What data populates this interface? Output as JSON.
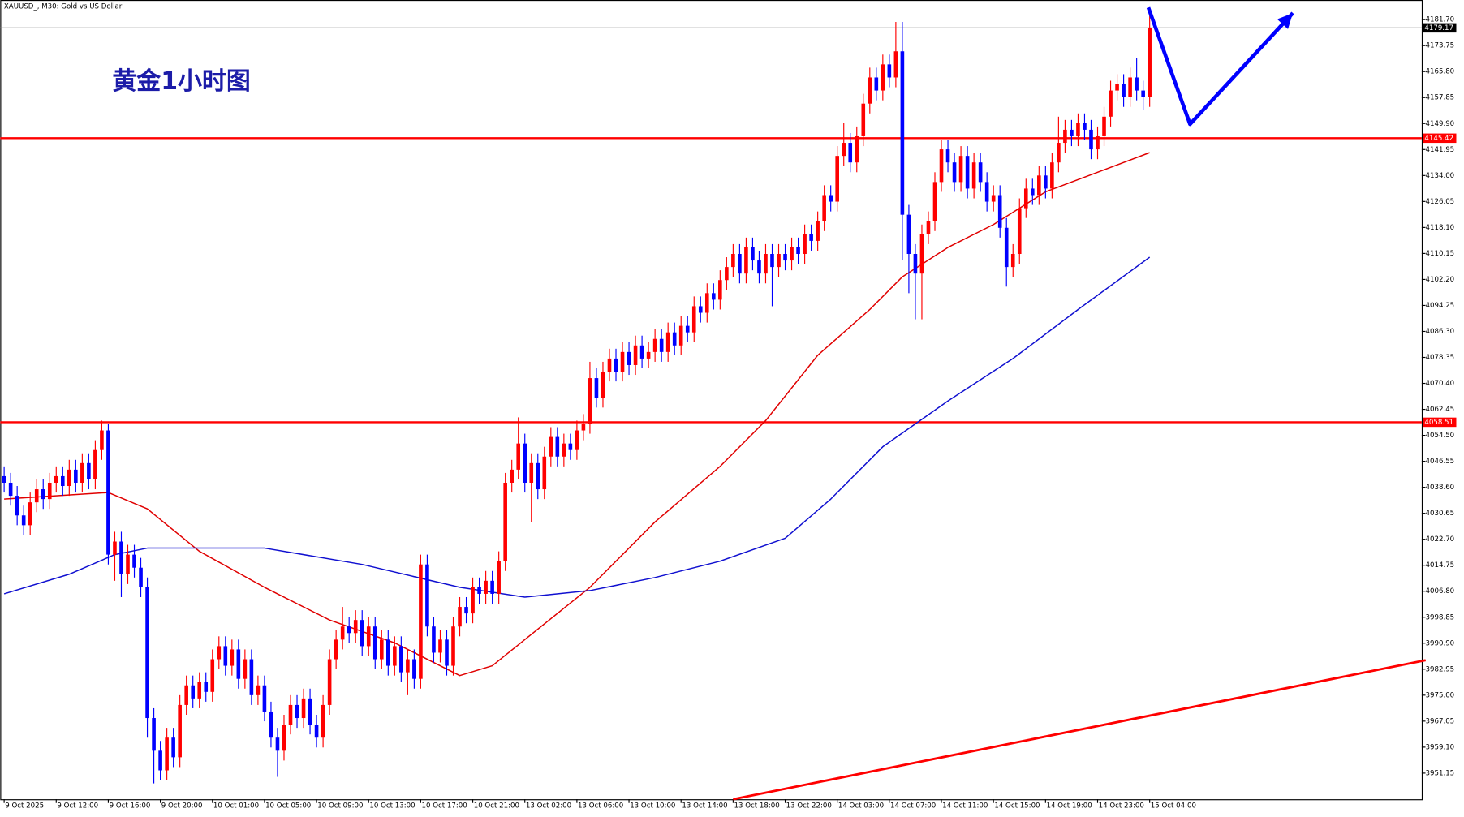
{
  "chart_data": {
    "type": "candlestick",
    "header": "XAUUSD_, M30:  Gold vs US Dollar",
    "title": "黄金1小时图",
    "up_color": "#ff0000",
    "down_color": "#0000ff",
    "xlim": [
      -0.6,
      217.8
    ],
    "ylim": [
      3943.15,
      4187.7
    ],
    "xticks": [
      {
        "value": 0,
        "label": "9 Oct 2025"
      },
      {
        "value": 8,
        "label": "9 Oct 12:00"
      },
      {
        "value": 16,
        "label": "9 Oct 16:00"
      },
      {
        "value": 24,
        "label": "9 Oct 20:00"
      },
      {
        "value": 32,
        "label": "10 Oct 01:00"
      },
      {
        "value": 40,
        "label": "10 Oct 05:00"
      },
      {
        "value": 48,
        "label": "10 Oct 09:00"
      },
      {
        "value": 56,
        "label": "10 Oct 13:00"
      },
      {
        "value": 64,
        "label": "10 Oct 17:00"
      },
      {
        "value": 72,
        "label": "10 Oct 21:00"
      },
      {
        "value": 80,
        "label": "13 Oct 02:00"
      },
      {
        "value": 88,
        "label": "13 Oct 06:00"
      },
      {
        "value": 96,
        "label": "13 Oct 10:00"
      },
      {
        "value": 104,
        "label": "13 Oct 14:00"
      },
      {
        "value": 112,
        "label": "13 Oct 18:00"
      },
      {
        "value": 120,
        "label": "13 Oct 22:00"
      },
      {
        "value": 128,
        "label": "14 Oct 03:00"
      },
      {
        "value": 136,
        "label": "14 Oct 07:00"
      },
      {
        "value": 144,
        "label": "14 Oct 11:00"
      },
      {
        "value": 152,
        "label": "14 Oct 15:00"
      },
      {
        "value": 160,
        "label": "14 Oct 19:00"
      },
      {
        "value": 168,
        "label": "14 Oct 23:00"
      },
      {
        "value": 176,
        "label": "15 Oct 04:00"
      }
    ],
    "yticks": [
      {
        "value": 4181.7,
        "label": "4181.70"
      },
      4173.75,
      {
        "value": 4165.8,
        "label": "4165.80"
      },
      4157.85,
      {
        "value": 4149.9,
        "label": "4149.90"
      },
      4141.95,
      {
        "value": 4134,
        "label": "4134.00"
      },
      4126.05,
      {
        "value": 4118.1,
        "label": "4118.10"
      },
      4110.15,
      {
        "value": 4102.2,
        "label": "4102.20"
      },
      4094.25,
      {
        "value": 4086.3,
        "label": "4086.30"
      },
      4078.35,
      {
        "value": 4070.4,
        "label": "4070.40"
      },
      4062.45,
      {
        "value": 4054.5,
        "label": "4054.50"
      },
      4046.55,
      {
        "value": 4038.6,
        "label": "4038.60"
      },
      4030.65,
      {
        "value": 4022.7,
        "label": "4022.70"
      },
      4014.75,
      {
        "value": 4006.8,
        "label": "4006.80"
      },
      3998.85,
      {
        "value": 3990.9,
        "label": "3990.90"
      },
      3982.95,
      {
        "value": 3975,
        "label": "3975.00"
      },
      3967.05,
      {
        "value": 3959.1,
        "label": "3959.10"
      },
      3951.15
    ],
    "last_price": 4179.17,
    "hlines": [
      {
        "value": 4145.42,
        "color": "#ff0000"
      },
      {
        "value": 4058.51,
        "color": "#ff0000"
      }
    ],
    "candles": {
      "open": [
        4042,
        4040,
        4036,
        4030,
        4027,
        4034,
        4038,
        4035,
        4040,
        4042,
        4039,
        4044,
        4040,
        4046,
        4041,
        4050,
        4056,
        4018,
        4022,
        4012,
        4018,
        4014,
        4008,
        3968,
        3958,
        3952,
        3962,
        3956,
        3972,
        3978,
        3974,
        3979,
        3976,
        3986,
        3990,
        3984,
        3989,
        3980,
        3986,
        3975,
        3978,
        3970,
        3962,
        3958,
        3966,
        3972,
        3968,
        3974,
        3966,
        3962,
        3972,
        3986,
        3992,
        3996,
        3994,
        3998,
        3990,
        3996,
        3986,
        3992,
        3984,
        3990,
        3982,
        3986,
        3980,
        4015,
        3996,
        3988,
        3992,
        3984,
        3996,
        4002,
        4000,
        4008,
        4006,
        4010,
        4006,
        4016,
        4040,
        4044,
        4052,
        4040,
        4046,
        4038,
        4048,
        4054,
        4048,
        4052,
        4050,
        4056,
        4058,
        4072,
        4066,
        4074,
        4078,
        4074,
        4080,
        4076,
        4082,
        4078,
        4080,
        4084,
        4080,
        4086,
        4082,
        4088,
        4086,
        4094,
        4092,
        4098,
        4096,
        4102,
        4106,
        4110,
        4104,
        4112,
        4108,
        4104,
        4110,
        4106,
        4110,
        4108,
        4112,
        4110,
        4116,
        4114,
        4120,
        4128,
        4126,
        4140,
        4144,
        4138,
        4146,
        4156,
        4164,
        4160,
        4168,
        4164,
        4172,
        4122,
        4110,
        4104,
        4116,
        4120,
        4132,
        4142,
        4138,
        4132,
        4140,
        4130,
        4138,
        4132,
        4126,
        4128,
        4118,
        4106,
        4110,
        4124,
        4130,
        4128,
        4134,
        4130,
        4138,
        4144,
        4148,
        4146,
        4150,
        4148,
        4142,
        4146,
        4152,
        4160,
        4162,
        4158,
        4164,
        4160,
        4158
      ],
      "high": [
        4045,
        4043,
        4039,
        4033,
        4037,
        4041,
        4041,
        4043,
        4045,
        4045,
        4047,
        4047,
        4049,
        4049,
        4053,
        4059,
        4058,
        4025,
        4025,
        4021,
        4021,
        4017,
        4011,
        3971,
        3961,
        3965,
        3965,
        3975,
        3981,
        3981,
        3982,
        3982,
        3989,
        3993,
        3993,
        3992,
        3992,
        3989,
        3989,
        3981,
        3981,
        3973,
        3965,
        3969,
        3975,
        3975,
        3977,
        3977,
        3969,
        3975,
        3989,
        3995,
        4002,
        3999,
        4001,
        4001,
        3999,
        3999,
        3995,
        3995,
        3993,
        3993,
        3989,
        3989,
        4018,
        4018,
        3999,
        3995,
        3995,
        3999,
        4005,
        4005,
        4011,
        4011,
        4013,
        4013,
        4019,
        4043,
        4047,
        4060,
        4055,
        4049,
        4049,
        4051,
        4057,
        4057,
        4055,
        4055,
        4059,
        4061,
        4077,
        4075,
        4077,
        4081,
        4081,
        4083,
        4083,
        4085,
        4085,
        4083,
        4087,
        4087,
        4089,
        4089,
        4091,
        4091,
        4097,
        4097,
        4101,
        4101,
        4105,
        4109,
        4113,
        4113,
        4115,
        4115,
        4111,
        4113,
        4113,
        4113,
        4113,
        4115,
        4115,
        4119,
        4119,
        4123,
        4131,
        4131,
        4143,
        4150,
        4147,
        4149,
        4159,
        4167,
        4167,
        4171,
        4171,
        4181,
        4181,
        4125,
        4113,
        4119,
        4123,
        4135,
        4145,
        4145,
        4141,
        4143,
        4143,
        4141,
        4141,
        4135,
        4131,
        4131,
        4121,
        4113,
        4127,
        4133,
        4133,
        4137,
        4137,
        4141,
        4152,
        4151,
        4151,
        4153,
        4153,
        4151,
        4149,
        4155,
        4163,
        4165,
        4165,
        4167,
        4170,
        4163,
        4185
      ],
      "low": [
        4037,
        4033,
        4027,
        4024,
        4024,
        4031,
        4032,
        4032,
        4037,
        4036,
        4036,
        4037,
        4037,
        4038,
        4038,
        4047,
        4015,
        4010,
        4005,
        4009,
        4011,
        4005,
        3962,
        3948,
        3949,
        3949,
        3953,
        3953,
        3969,
        3971,
        3971,
        3973,
        3973,
        3983,
        3981,
        3981,
        3977,
        3977,
        3972,
        3972,
        3967,
        3959,
        3950,
        3955,
        3963,
        3965,
        3965,
        3963,
        3959,
        3959,
        3969,
        3983,
        3989,
        3991,
        3991,
        3987,
        3987,
        3983,
        3983,
        3981,
        3981,
        3979,
        3975,
        3977,
        3977,
        3993,
        3985,
        3985,
        3981,
        3981,
        3993,
        3997,
        3997,
        4003,
        4003,
        4003,
        4003,
        4013,
        4037,
        4041,
        4037,
        4028,
        4035,
        4035,
        4045,
        4045,
        4045,
        4047,
        4047,
        4053,
        4055,
        4063,
        4063,
        4071,
        4071,
        4071,
        4073,
        4073,
        4075,
        4075,
        4077,
        4077,
        4077,
        4079,
        4079,
        4083,
        4083,
        4089,
        4089,
        4093,
        4093,
        4099,
        4103,
        4101,
        4101,
        4105,
        4101,
        4101,
        4094,
        4103,
        4105,
        4105,
        4107,
        4107,
        4111,
        4111,
        4117,
        4123,
        4123,
        4137,
        4135,
        4135,
        4143,
        4153,
        4157,
        4157,
        4161,
        4161,
        4108,
        4098,
        4090,
        4090,
        4113,
        4117,
        4129,
        4135,
        4129,
        4129,
        4127,
        4127,
        4129,
        4123,
        4123,
        4115,
        4100,
        4103,
        4107,
        4121,
        4125,
        4125,
        4127,
        4127,
        4135,
        4141,
        4143,
        4143,
        4145,
        4139,
        4139,
        4143,
        4149,
        4157,
        4155,
        4155,
        4157,
        4154,
        4155
      ],
      "close": [
        4040,
        4036,
        4030,
        4027,
        4034,
        4038,
        4035,
        4040,
        4042,
        4039,
        4044,
        4040,
        4046,
        4041,
        4050,
        4056,
        4018,
        4022,
        4012,
        4018,
        4014,
        4008,
        3968,
        3958,
        3952,
        3962,
        3956,
        3972,
        3978,
        3974,
        3979,
        3976,
        3986,
        3990,
        3984,
        3989,
        3980,
        3986,
        3975,
        3978,
        3970,
        3962,
        3958,
        3966,
        3972,
        3968,
        3974,
        3966,
        3962,
        3972,
        3986,
        3992,
        3996,
        3994,
        3998,
        3990,
        3996,
        3986,
        3992,
        3984,
        3990,
        3982,
        3986,
        3980,
        4015,
        3996,
        3988,
        3992,
        3984,
        3996,
        4002,
        4000,
        4008,
        4006,
        4010,
        4006,
        4016,
        4040,
        4044,
        4052,
        4040,
        4046,
        4038,
        4048,
        4054,
        4048,
        4052,
        4050,
        4056,
        4058,
        4072,
        4066,
        4074,
        4078,
        4074,
        4080,
        4076,
        4082,
        4078,
        4080,
        4084,
        4080,
        4086,
        4082,
        4088,
        4086,
        4094,
        4092,
        4098,
        4096,
        4102,
        4106,
        4110,
        4104,
        4112,
        4108,
        4104,
        4110,
        4106,
        4110,
        4108,
        4112,
        4110,
        4116,
        4114,
        4120,
        4128,
        4126,
        4140,
        4144,
        4138,
        4146,
        4156,
        4164,
        4160,
        4168,
        4164,
        4172,
        4122,
        4110,
        4104,
        4116,
        4120,
        4132,
        4142,
        4138,
        4132,
        4140,
        4130,
        4138,
        4132,
        4126,
        4128,
        4118,
        4106,
        4110,
        4124,
        4130,
        4128,
        4134,
        4130,
        4138,
        4144,
        4148,
        4146,
        4150,
        4148,
        4142,
        4146,
        4152,
        4160,
        4162,
        4158,
        4164,
        4160,
        4158,
        4179.17
      ]
    },
    "moving_averages": [
      {
        "color": "#e00000",
        "x": [
          0,
          16,
          22,
          30,
          40,
          50,
          60,
          70,
          75,
          80,
          90,
          100,
          110,
          117,
          125,
          133,
          138,
          145,
          152,
          160,
          168,
          176
        ],
        "values": [
          4035,
          4037,
          4032,
          4019,
          4008,
          3998,
          3991,
          3981,
          3984,
          3992,
          4008,
          4028,
          4045,
          4059,
          4079,
          4093,
          4103,
          4112,
          4119,
          4129,
          4135,
          4141
        ]
      },
      {
        "color": "#1010d0",
        "x": [
          0,
          10,
          17,
          22,
          40,
          55,
          70,
          80,
          90,
          100,
          110,
          120,
          127,
          135,
          145,
          155,
          165,
          176
        ],
        "values": [
          4006,
          4012,
          4018,
          4020,
          4020,
          4015,
          4008,
          4005,
          4007,
          4011,
          4016,
          4023,
          4035,
          4051,
          4065,
          4078,
          4093,
          4109
        ]
      }
    ],
    "trendline": {
      "color": "#ff0000",
      "x": [
        112,
        218.4
      ],
      "y": [
        3943.15,
        3985.7
      ]
    },
    "arrow": {
      "color": "#0000ff",
      "x": [
        175.8,
        182.2,
        198
      ],
      "y": [
        4185.4,
        4149.7,
        4183.7
      ]
    }
  }
}
